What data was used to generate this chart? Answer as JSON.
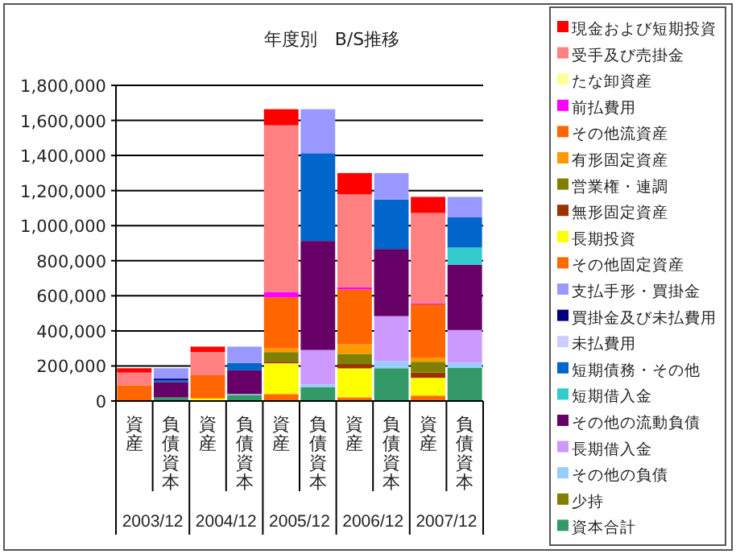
{
  "chart_data": {
    "type": "bar",
    "stacked": true,
    "title": "年度別　B/S推移",
    "categories": [
      "資産",
      "負債資本",
      "資産",
      "負債資本",
      "資産",
      "負債資本",
      "資産",
      "負債資本",
      "資産",
      "負債資本"
    ],
    "annotations": [
      "2003/12",
      "2004/12",
      "2005/12",
      "2006/12",
      "2007/12"
    ],
    "ylim": [
      0,
      1800000
    ],
    "yticks": [
      {
        "value": 0,
        "label": "0"
      },
      {
        "value": 200000,
        "label": "200,000"
      },
      {
        "value": 400000,
        "label": "400,000"
      },
      {
        "value": 600000,
        "label": "600,000"
      },
      {
        "value": 800000,
        "label": "800,000"
      },
      {
        "value": 1000000,
        "label": "1,000,000"
      },
      {
        "value": 1200000,
        "label": "1,200,000"
      },
      {
        "value": 1400000,
        "label": "1,400,000"
      },
      {
        "value": 1600000,
        "label": "1,600,000"
      },
      {
        "value": 1800000,
        "label": "1,800,000"
      }
    ],
    "grid": "y",
    "legend": "right",
    "series": [
      {
        "name": "資本合計",
        "color": "#339966",
        "values": [
          0,
          20000,
          0,
          35000,
          0,
          80000,
          0,
          187000,
          0,
          190000
        ]
      },
      {
        "name": "少持",
        "color": "#7f7f00",
        "values": [
          0,
          0,
          0,
          0,
          0,
          0,
          0,
          0,
          0,
          0
        ]
      },
      {
        "name": "その他の負債",
        "color": "#99ccff",
        "values": [
          0,
          0,
          0,
          5000,
          0,
          15000,
          0,
          40000,
          0,
          28000
        ]
      },
      {
        "name": "長期借入金",
        "color": "#cc99ff",
        "values": [
          0,
          0,
          0,
          0,
          0,
          196000,
          0,
          257000,
          0,
          187000
        ]
      },
      {
        "name": "その他の流動負債",
        "color": "#660066",
        "values": [
          0,
          88000,
          0,
          135000,
          0,
          622000,
          0,
          383000,
          0,
          372000
        ]
      },
      {
        "name": "短期借入金",
        "color": "#33cccc",
        "values": [
          0,
          0,
          0,
          0,
          0,
          0,
          0,
          0,
          0,
          98000
        ]
      },
      {
        "name": "短期債務・その他",
        "color": "#0066cc",
        "values": [
          0,
          10000,
          0,
          42000,
          0,
          500000,
          0,
          282000,
          0,
          172000
        ]
      },
      {
        "name": "未払費用",
        "color": "#ccccff",
        "values": [
          0,
          0,
          0,
          0,
          0,
          0,
          0,
          0,
          0,
          0
        ]
      },
      {
        "name": "買掛金及び未払費用",
        "color": "#000080",
        "values": [
          0,
          10000,
          0,
          0,
          0,
          0,
          0,
          0,
          0,
          0
        ]
      },
      {
        "name": "支払手形・買掛金",
        "color": "#9999ff",
        "values": [
          0,
          59000,
          0,
          93000,
          0,
          251000,
          0,
          151000,
          0,
          117000
        ]
      },
      {
        "name": "その他固定資産",
        "color": "#ff6a00",
        "values": [
          0,
          0,
          0,
          0,
          40000,
          0,
          21000,
          0,
          31000,
          0
        ]
      },
      {
        "name": "長期投資",
        "color": "#ffff00",
        "values": [
          0,
          0,
          15000,
          0,
          175000,
          0,
          165000,
          0,
          101000,
          0
        ]
      },
      {
        "name": "無形固定資産",
        "color": "#993300",
        "values": [
          0,
          0,
          0,
          0,
          9000,
          0,
          25000,
          0,
          31000,
          0
        ]
      },
      {
        "name": "営業権・連調",
        "color": "#808000",
        "values": [
          0,
          0,
          0,
          0,
          55000,
          0,
          58000,
          0,
          61000,
          0
        ]
      },
      {
        "name": "有形固定資産",
        "color": "#ff9900",
        "values": [
          0,
          0,
          0,
          0,
          21000,
          0,
          55000,
          0,
          24000,
          0
        ]
      },
      {
        "name": "その他流資産",
        "color": "#ff6600",
        "values": [
          90000,
          0,
          132000,
          0,
          291000,
          0,
          312000,
          0,
          303000,
          0
        ]
      },
      {
        "name": "前払費用",
        "color": "#ff00ff",
        "values": [
          0,
          0,
          0,
          0,
          31000,
          0,
          12000,
          0,
          6000,
          0
        ]
      },
      {
        "name": "たな卸資産",
        "color": "#ffff99",
        "values": [
          0,
          0,
          0,
          0,
          0,
          0,
          0,
          0,
          0,
          0
        ]
      },
      {
        "name": "受手及び売掛金",
        "color": "#ff8080",
        "values": [
          72000,
          0,
          133000,
          0,
          950000,
          0,
          530000,
          0,
          515000,
          0
        ]
      },
      {
        "name": "現金および短期投資",
        "color": "#ff0000",
        "values": [
          25000,
          0,
          30000,
          0,
          92000,
          0,
          122000,
          0,
          92000,
          0
        ]
      }
    ]
  }
}
